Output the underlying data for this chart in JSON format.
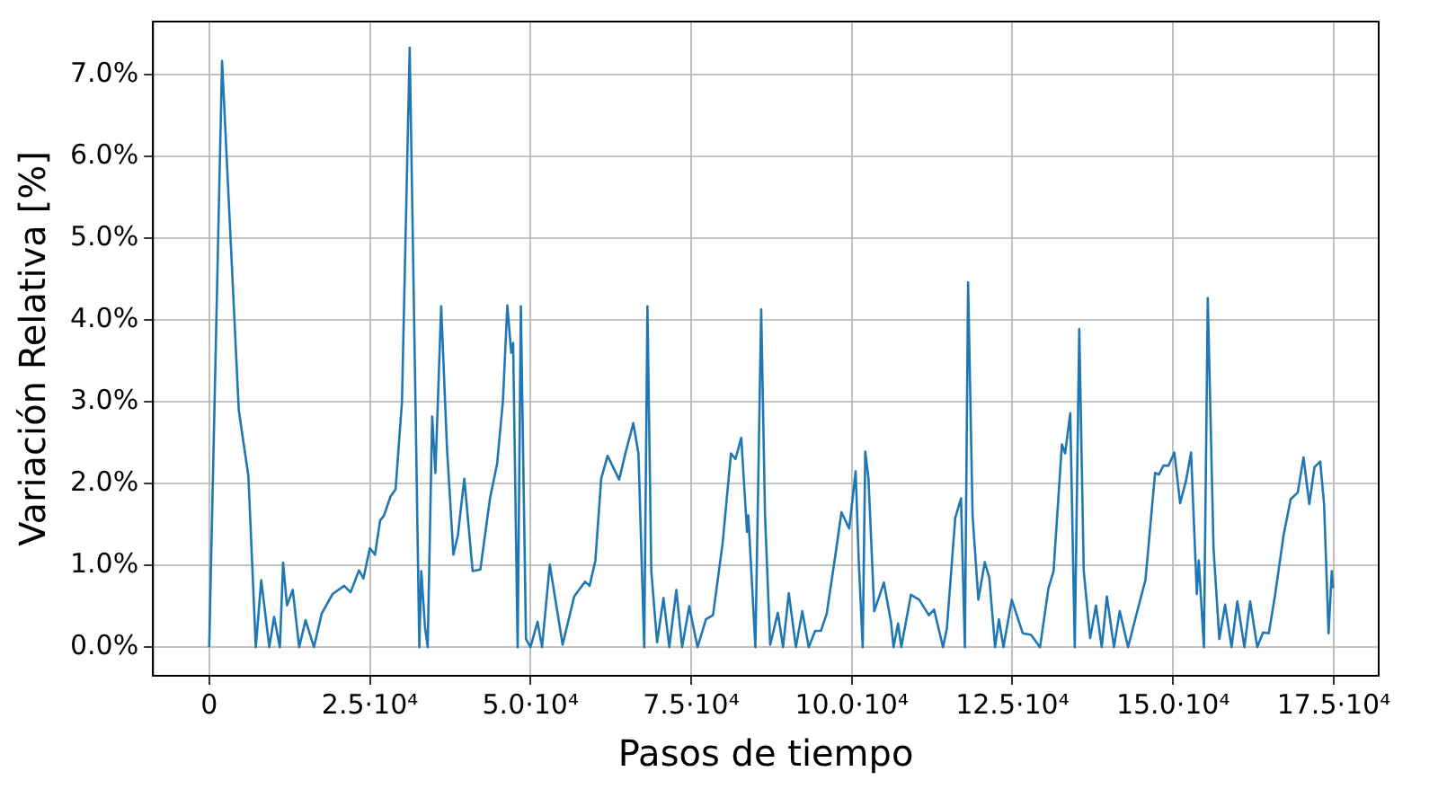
{
  "chart_data": {
    "type": "line",
    "xlabel": "Pasos de tiempo",
    "ylabel": "Variación Relativa [%]",
    "color": "#1f77b4",
    "marker": "none",
    "grid": true,
    "legend": false,
    "x": [
      0,
      2000,
      4600,
      6100,
      7250,
      8100,
      9350,
      10100,
      11000,
      11500,
      12100,
      13000,
      14000,
      15000,
      16300,
      17500,
      19200,
      21000,
      22000,
      23300,
      24000,
      25000,
      25800,
      26600,
      27200,
      28200,
      29000,
      30000,
      31200,
      32100,
      32700,
      33000,
      33600,
      34000,
      34700,
      35200,
      36100,
      37000,
      38000,
      38700,
      39700,
      41000,
      42200,
      43700,
      44800,
      45700,
      46400,
      47000,
      47300,
      48000,
      48500,
      49300,
      50000,
      51100,
      51800,
      53000,
      55000,
      56800,
      58500,
      59200,
      60100,
      61000,
      62000,
      63800,
      64800,
      66000,
      66800,
      67700,
      68200,
      68800,
      69700,
      70700,
      71600,
      72700,
      73600,
      74700,
      76000,
      77300,
      78400,
      79900,
      81200,
      81900,
      82800,
      83700,
      83900,
      85000,
      85900,
      86500,
      87300,
      88500,
      89300,
      90200,
      91300,
      92300,
      93300,
      94300,
      95200,
      96100,
      97400,
      98400,
      99600,
      100600,
      101100,
      101700,
      102100,
      102600,
      103500,
      105000,
      106100,
      106500,
      107200,
      107700,
      109200,
      110500,
      112000,
      112800,
      114200,
      114800,
      116100,
      117000,
      117600,
      118100,
      118800,
      119700,
      120700,
      121400,
      122300,
      122900,
      123600,
      124900,
      126600,
      127900,
      129300,
      130600,
      131400,
      132700,
      133200,
      134000,
      134700,
      135400,
      136100,
      137100,
      138000,
      138900,
      139700,
      140800,
      141700,
      143000,
      144100,
      145700,
      147200,
      147800,
      148500,
      149300,
      150200,
      151100,
      152000,
      152800,
      153700,
      154000,
      154800,
      155400,
      156300,
      157200,
      158100,
      159100,
      160000,
      161100,
      162000,
      163100,
      164000,
      164900,
      165900,
      167200,
      168300,
      169400,
      170300,
      171200,
      172000,
      172900,
      173500,
      174200,
      174700,
      174900
    ],
    "values": [
      0,
      7.17,
      2.9,
      2.09,
      0,
      0.82,
      0,
      0.37,
      0,
      1.03,
      0.51,
      0.7,
      0,
      0.33,
      0,
      0.41,
      0.65,
      0.75,
      0.67,
      0.94,
      0.84,
      1.21,
      1.13,
      1.55,
      1.61,
      1.84,
      1.93,
      3.0,
      7.33,
      3.0,
      0,
      0.93,
      0.23,
      0,
      2.82,
      2.13,
      4.17,
      2.44,
      1.13,
      1.37,
      2.06,
      0.93,
      0.95,
      1.82,
      2.24,
      3.0,
      4.18,
      3.6,
      3.72,
      0,
      4.17,
      0.1,
      0,
      0.31,
      0,
      1.01,
      0.03,
      0.62,
      0.8,
      0.75,
      1.06,
      2.06,
      2.34,
      2.05,
      2.38,
      2.74,
      2.37,
      0,
      4.17,
      0.93,
      0.06,
      0.6,
      0,
      0.7,
      0,
      0.5,
      0,
      0.34,
      0.39,
      1.27,
      2.37,
      2.3,
      2.56,
      1.41,
      1.61,
      0,
      4.13,
      1.61,
      0.03,
      0.42,
      0,
      0.66,
      0,
      0.44,
      0,
      0.2,
      0.2,
      0.41,
      1.1,
      1.65,
      1.45,
      2.15,
      1.03,
      0,
      2.39,
      2.06,
      0.44,
      0.79,
      0.31,
      0,
      0.29,
      0,
      0.64,
      0.58,
      0.39,
      0.46,
      0,
      0.23,
      1.58,
      1.82,
      0,
      4.46,
      1.61,
      0.58,
      1.04,
      0.85,
      0,
      0.34,
      0,
      0.58,
      0.17,
      0.15,
      0,
      0.72,
      0.93,
      2.48,
      2.37,
      2.86,
      0,
      3.89,
      0.93,
      0.11,
      0.51,
      0,
      0.62,
      0,
      0.44,
      0,
      0.34,
      0.82,
      2.13,
      2.11,
      2.22,
      2.22,
      2.38,
      1.76,
      2.03,
      2.38,
      0.65,
      1.06,
      0,
      4.27,
      1.2,
      0.1,
      0.52,
      0,
      0.56,
      0,
      0.56,
      0,
      0.18,
      0.17,
      0.65,
      1.37,
      1.81,
      1.89,
      2.32,
      1.75,
      2.2,
      2.27,
      1.75,
      0.17,
      0.93,
      0.72
    ],
    "xlim": [
      -8750,
      182000
    ],
    "xticks": [
      0,
      {
        "value": 25000,
        "label": "2.5·10⁴"
      },
      {
        "value": 50000,
        "label": "5.0·10⁴"
      },
      {
        "value": 75000,
        "label": "7.5·10⁴"
      },
      {
        "value": 100000,
        "label": "10.0·10⁴"
      },
      {
        "value": 125000,
        "label": "12.5·10⁴"
      },
      {
        "value": 150000,
        "label": "15.0·10⁴"
      },
      {
        "value": 175000,
        "label": "17.5·10⁴"
      }
    ],
    "ylim": [
      -0.35,
      7.65
    ],
    "yticks": [
      {
        "value": 0,
        "label": "0.0%"
      },
      {
        "value": 1,
        "label": "1.0%"
      },
      {
        "value": 2,
        "label": "2.0%"
      },
      {
        "value": 3,
        "label": "3.0%"
      },
      {
        "value": 4,
        "label": "4.0%"
      },
      {
        "value": 5,
        "label": "5.0%"
      },
      {
        "value": 6,
        "label": "6.0%"
      },
      {
        "value": 7,
        "label": "7.0%"
      }
    ]
  }
}
